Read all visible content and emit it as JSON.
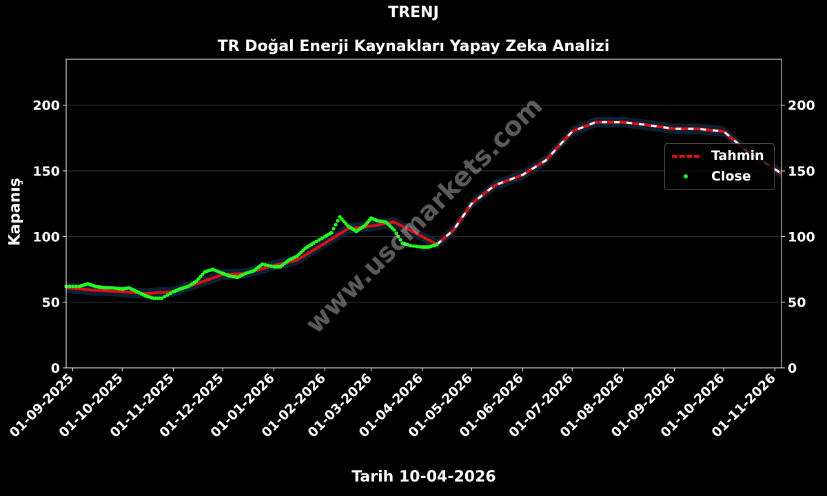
{
  "header": {
    "title": "TRENJ",
    "subtitle": "TR Doğal Enerji Kaynakları Yapay Zeka Analizi"
  },
  "watermark": "www.uscmarkets.com",
  "colors": {
    "background": "#000000",
    "forecast": "#e01010",
    "close": "#22ff22",
    "band": "#0d2438"
  },
  "chart_data": {
    "type": "line",
    "title": "TRENJ",
    "subtitle": "TR Doğal Enerji Kaynakları Yapay Zeka Analizi",
    "xlabel": "Tarih 10-04-2026",
    "ylabel": "Kapanış",
    "ylim": [
      0,
      235
    ],
    "xlim": [
      "2025-08-28",
      "2026-11-05"
    ],
    "yticks": [
      0,
      50,
      100,
      150,
      200
    ],
    "xticks": [
      "01-09-2025",
      "01-10-2025",
      "01-11-2025",
      "01-12-2025",
      "01-01-2026",
      "01-02-2026",
      "01-03-2026",
      "01-04-2026",
      "01-05-2026",
      "01-06-2026",
      "01-07-2026",
      "01-08-2026",
      "01-09-2026",
      "01-10-2026",
      "01-11-2026"
    ],
    "grid": "horizontal",
    "legend_position": "right",
    "series": [
      {
        "name": "Tahmin",
        "style": "dashed",
        "x": [
          "2025-08-28",
          "2025-09-15",
          "2025-10-01",
          "2025-10-15",
          "2025-11-01",
          "2025-11-15",
          "2025-12-01",
          "2025-12-15",
          "2026-01-01",
          "2026-01-15",
          "2026-02-01",
          "2026-02-15",
          "2026-03-01",
          "2026-03-15",
          "2026-04-01",
          "2026-04-10",
          "2026-04-20",
          "2026-05-01",
          "2026-05-15",
          "2026-06-01",
          "2026-06-15",
          "2026-07-01",
          "2026-07-15",
          "2026-08-01",
          "2026-08-15",
          "2026-09-01",
          "2026-09-15",
          "2026-10-01",
          "2026-10-15",
          "2026-11-05"
        ],
        "values": [
          61,
          59,
          58,
          56.5,
          58,
          64,
          71,
          72,
          78,
          82,
          95,
          106,
          108,
          111,
          100,
          94,
          105,
          125,
          139,
          147,
          158,
          180,
          187,
          187,
          185,
          182,
          182,
          180,
          165,
          148
        ],
        "band": 4
      },
      {
        "name": "Close",
        "style": "points",
        "x": [
          "2025-08-28",
          "2025-09-05",
          "2025-09-10",
          "2025-09-15",
          "2025-09-20",
          "2025-09-25",
          "2025-10-01",
          "2025-10-05",
          "2025-10-10",
          "2025-10-15",
          "2025-10-20",
          "2025-10-25",
          "2025-11-01",
          "2025-11-05",
          "2025-11-10",
          "2025-11-15",
          "2025-11-20",
          "2025-11-25",
          "2025-12-01",
          "2025-12-05",
          "2025-12-10",
          "2025-12-15",
          "2025-12-20",
          "2025-12-25",
          "2026-01-01",
          "2026-01-05",
          "2026-01-10",
          "2026-01-15",
          "2026-01-20",
          "2026-01-25",
          "2026-02-01",
          "2026-02-05",
          "2026-02-10",
          "2026-02-15",
          "2026-02-20",
          "2026-02-25",
          "2026-03-01",
          "2026-03-05",
          "2026-03-10",
          "2026-03-15",
          "2026-03-20",
          "2026-03-25",
          "2026-04-01",
          "2026-04-05",
          "2026-04-10"
        ],
        "values": [
          62,
          62,
          64,
          62,
          61,
          61,
          60,
          61,
          58,
          55,
          53,
          53,
          58,
          60,
          62,
          66,
          73,
          75,
          72,
          70,
          69,
          72,
          74,
          79,
          77,
          77,
          82,
          85,
          91,
          95,
          100,
          103,
          115,
          108,
          104,
          108,
          114,
          112,
          111,
          105,
          95,
          93,
          92,
          92,
          94
        ]
      }
    ]
  }
}
